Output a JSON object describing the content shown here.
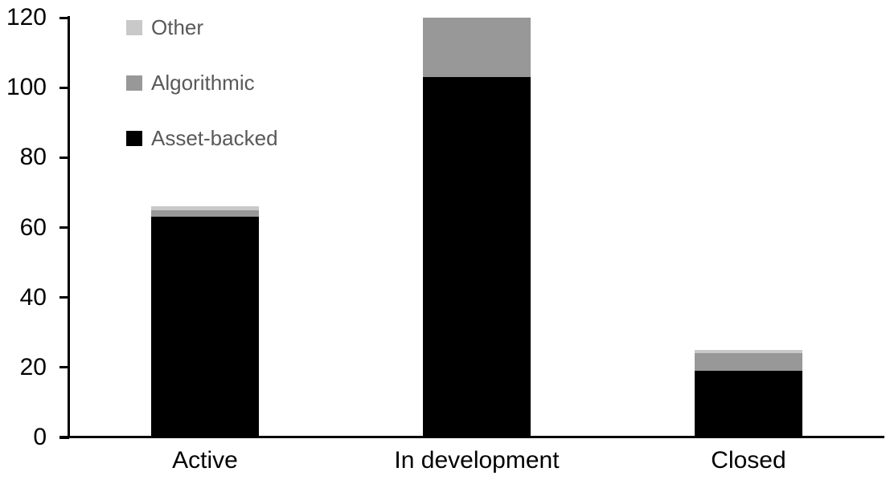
{
  "chart_data": {
    "type": "bar",
    "stacked": true,
    "title": "",
    "xlabel": "",
    "ylabel": "",
    "categories": [
      "Active",
      "In development",
      "Closed"
    ],
    "series": [
      {
        "name": "Asset-backed",
        "color": "#000000",
        "values": [
          63,
          103,
          19
        ]
      },
      {
        "name": "Algorithmic",
        "color": "#989898",
        "values": [
          2,
          17,
          5
        ]
      },
      {
        "name": "Other",
        "color": "#c9c9c9",
        "values": [
          1,
          0,
          1
        ]
      }
    ],
    "stack_totals": [
      66,
      120,
      25
    ],
    "ylim": [
      0,
      120
    ],
    "yticks": [
      0,
      20,
      40,
      60,
      80,
      100,
      120
    ],
    "grid": false,
    "legend_position": "top-left",
    "legend_order": [
      "Other",
      "Algorithmic",
      "Asset-backed"
    ],
    "colors": {
      "axis": "#000000",
      "tick_label": "#000000",
      "category_label": "#000000",
      "legend_text": "#595959",
      "background": "#ffffff"
    }
  }
}
